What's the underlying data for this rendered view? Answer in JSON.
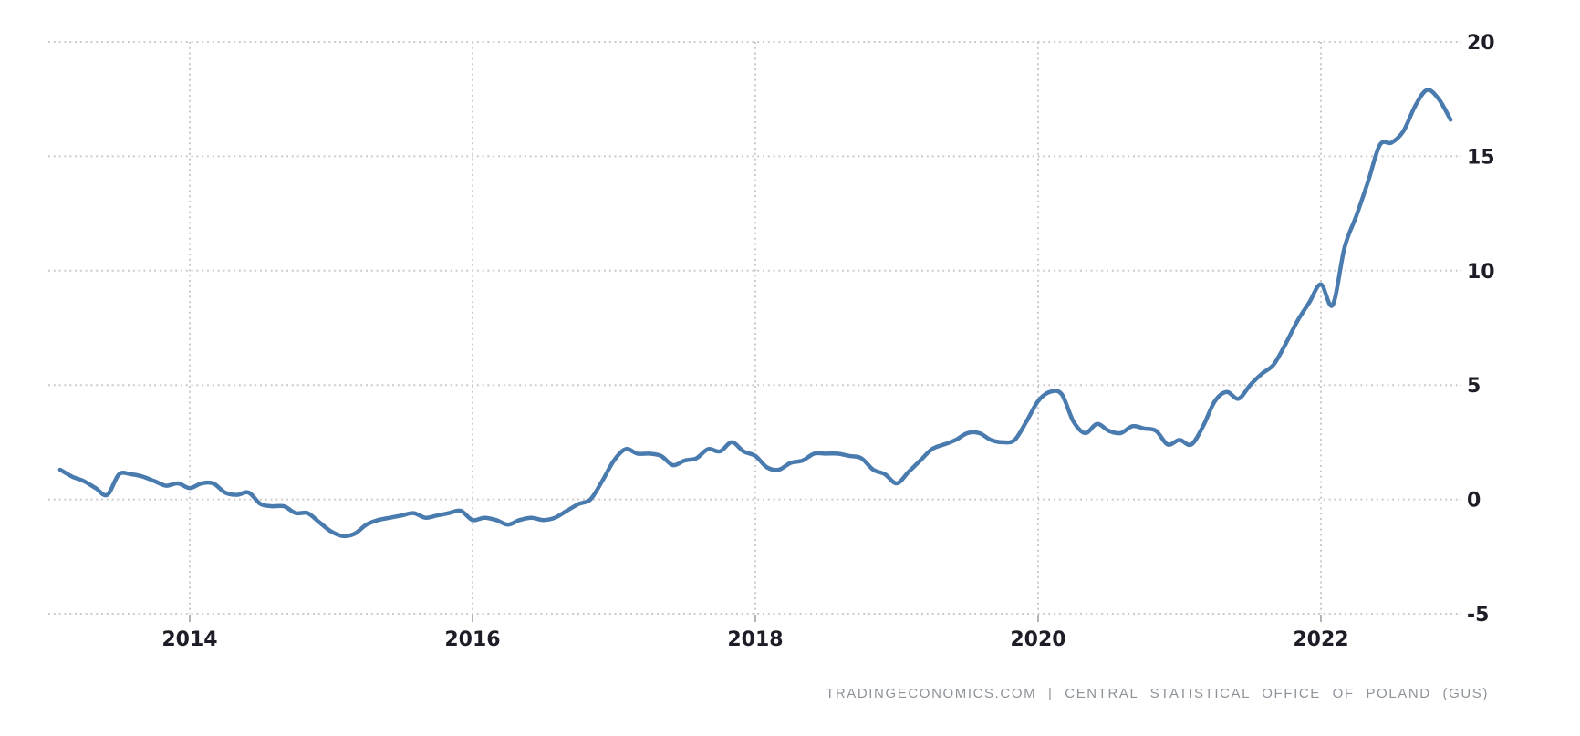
{
  "chart_data": {
    "type": "line",
    "title": "",
    "xlabel": "",
    "ylabel": "",
    "legend": "none",
    "grid": "dotted",
    "line_color": "#4a7bae",
    "ylim": [
      -5,
      20
    ],
    "y_ticks": [
      20,
      15,
      10,
      5,
      0,
      -5
    ],
    "x_tick_labels": [
      "2014",
      "2016",
      "2018",
      "2020",
      "2022"
    ],
    "x": [
      "2013-02",
      "2013-03",
      "2013-04",
      "2013-05",
      "2013-06",
      "2013-07",
      "2013-08",
      "2013-09",
      "2013-10",
      "2013-11",
      "2013-12",
      "2014-01",
      "2014-02",
      "2014-03",
      "2014-04",
      "2014-05",
      "2014-06",
      "2014-07",
      "2014-08",
      "2014-09",
      "2014-10",
      "2014-11",
      "2014-12",
      "2015-01",
      "2015-02",
      "2015-03",
      "2015-04",
      "2015-05",
      "2015-06",
      "2015-07",
      "2015-08",
      "2015-09",
      "2015-10",
      "2015-11",
      "2015-12",
      "2016-01",
      "2016-02",
      "2016-03",
      "2016-04",
      "2016-05",
      "2016-06",
      "2016-07",
      "2016-08",
      "2016-09",
      "2016-10",
      "2016-11",
      "2016-12",
      "2017-01",
      "2017-02",
      "2017-03",
      "2017-04",
      "2017-05",
      "2017-06",
      "2017-07",
      "2017-08",
      "2017-09",
      "2017-10",
      "2017-11",
      "2017-12",
      "2018-01",
      "2018-02",
      "2018-03",
      "2018-04",
      "2018-05",
      "2018-06",
      "2018-07",
      "2018-08",
      "2018-09",
      "2018-10",
      "2018-11",
      "2018-12",
      "2019-01",
      "2019-02",
      "2019-03",
      "2019-04",
      "2019-05",
      "2019-06",
      "2019-07",
      "2019-08",
      "2019-09",
      "2019-10",
      "2019-11",
      "2019-12",
      "2020-01",
      "2020-02",
      "2020-03",
      "2020-04",
      "2020-05",
      "2020-06",
      "2020-07",
      "2020-08",
      "2020-09",
      "2020-10",
      "2020-11",
      "2020-12",
      "2021-01",
      "2021-02",
      "2021-03",
      "2021-04",
      "2021-05",
      "2021-06",
      "2021-07",
      "2021-08",
      "2021-09",
      "2021-10",
      "2021-11",
      "2021-12",
      "2022-01",
      "2022-02",
      "2022-03",
      "2022-04",
      "2022-05",
      "2022-06",
      "2022-07",
      "2022-08",
      "2022-09",
      "2022-10",
      "2022-11",
      "2022-12"
    ],
    "values": [
      1.3,
      1.0,
      0.8,
      0.5,
      0.2,
      1.1,
      1.1,
      1.0,
      0.8,
      0.6,
      0.7,
      0.5,
      0.7,
      0.7,
      0.3,
      0.2,
      0.3,
      -0.2,
      -0.3,
      -0.3,
      -0.6,
      -0.6,
      -1.0,
      -1.4,
      -1.6,
      -1.5,
      -1.1,
      -0.9,
      -0.8,
      -0.7,
      -0.6,
      -0.8,
      -0.7,
      -0.6,
      -0.5,
      -0.9,
      -0.8,
      -0.9,
      -1.1,
      -0.9,
      -0.8,
      -0.9,
      -0.8,
      -0.5,
      -0.2,
      0.0,
      0.8,
      1.7,
      2.2,
      2.0,
      2.0,
      1.9,
      1.5,
      1.7,
      1.8,
      2.2,
      2.1,
      2.5,
      2.1,
      1.9,
      1.4,
      1.3,
      1.6,
      1.7,
      2.0,
      2.0,
      2.0,
      1.9,
      1.8,
      1.3,
      1.1,
      0.7,
      1.2,
      1.7,
      2.2,
      2.4,
      2.6,
      2.9,
      2.9,
      2.6,
      2.5,
      2.6,
      3.4,
      4.3,
      4.7,
      4.6,
      3.4,
      2.9,
      3.3,
      3.0,
      2.9,
      3.2,
      3.1,
      3.0,
      2.4,
      2.6,
      2.4,
      3.2,
      4.3,
      4.7,
      4.4,
      5.0,
      5.5,
      5.9,
      6.8,
      7.8,
      8.6,
      9.4,
      8.5,
      11.0,
      12.4,
      13.9,
      15.5,
      15.6,
      16.1,
      17.2,
      17.9,
      17.5,
      16.6
    ]
  },
  "attribution": {
    "text": "TRADINGECONOMICS.COM | CENTRAL STATISTICAL OFFICE OF POLAND (GUS)"
  },
  "colors": {
    "line": "#4a7bae",
    "grid": "#cbcbcb",
    "tick_text": "#1d1d27",
    "attribution_text": "#8d949a",
    "background": "#ffffff"
  }
}
